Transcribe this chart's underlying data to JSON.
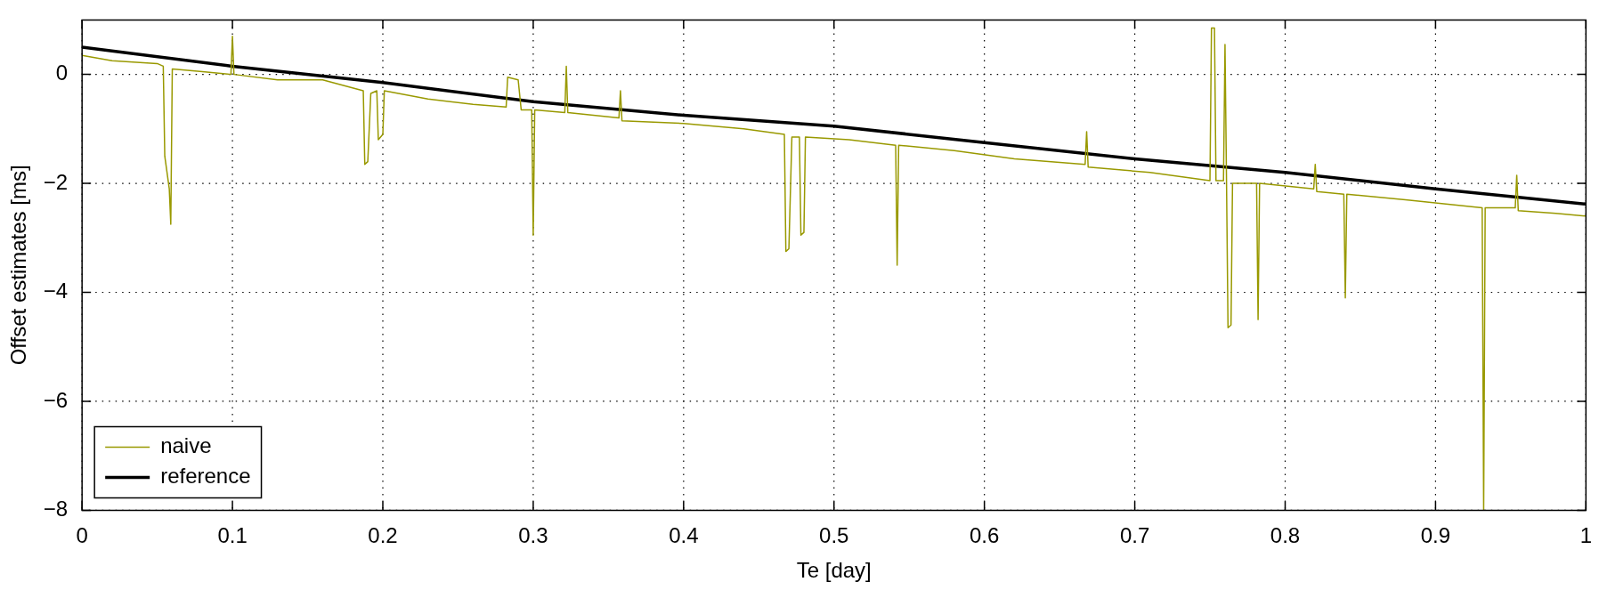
{
  "chart_data": {
    "type": "line",
    "xlabel": "Te [day]",
    "ylabel": "Offset estimates [ms]",
    "xlim": [
      0,
      1
    ],
    "ylim": [
      -8,
      1
    ],
    "xticks": [
      0,
      0.1,
      0.2,
      0.3,
      0.4,
      0.5,
      0.6,
      0.7,
      0.8,
      0.9,
      1
    ],
    "yticks": [
      {
        "value": -8,
        "label": "−8"
      },
      {
        "value": -6,
        "label": "−6"
      },
      {
        "value": -4,
        "label": "−4"
      },
      {
        "value": -2,
        "label": "−2"
      },
      0
    ],
    "grid": true,
    "legend": "bottom left",
    "marker": "none",
    "line_style": "solid",
    "series": [
      {
        "name": "naive",
        "color": "#999900",
        "x": [
          0,
          0.02,
          0.05,
          0.054,
          0.055,
          0.058,
          0.059,
          0.06,
          0.08,
          0.099,
          0.1,
          0.101,
          0.13,
          0.16,
          0.187,
          0.188,
          0.19,
          0.192,
          0.196,
          0.197,
          0.2,
          0.201,
          0.23,
          0.26,
          0.282,
          0.283,
          0.29,
          0.292,
          0.299,
          0.3,
          0.301,
          0.321,
          0.322,
          0.323,
          0.357,
          0.358,
          0.359,
          0.4,
          0.44,
          0.467,
          0.468,
          0.47,
          0.472,
          0.477,
          0.478,
          0.48,
          0.481,
          0.51,
          0.541,
          0.542,
          0.543,
          0.58,
          0.62,
          0.667,
          0.668,
          0.669,
          0.71,
          0.75,
          0.751,
          0.753,
          0.754,
          0.759,
          0.76,
          0.761,
          0.762,
          0.764,
          0.765,
          0.781,
          0.782,
          0.783,
          0.819,
          0.82,
          0.821,
          0.839,
          0.84,
          0.841,
          0.88,
          0.931,
          0.932,
          0.933,
          0.953,
          0.954,
          0.955,
          0.98,
          1
        ],
        "values": [
          0.35,
          0.25,
          0.2,
          0.15,
          -1.5,
          -2.1,
          -2.75,
          0.1,
          0.05,
          0,
          0.7,
          0,
          -0.1,
          -0.1,
          -0.3,
          -1.65,
          -1.6,
          -0.35,
          -0.3,
          -1.2,
          -1.1,
          -0.3,
          -0.45,
          -0.55,
          -0.6,
          -0.05,
          -0.1,
          -0.65,
          -0.65,
          -2.95,
          -0.65,
          -0.7,
          0.15,
          -0.7,
          -0.8,
          -0.3,
          -0.85,
          -0.9,
          -1,
          -1.1,
          -3.25,
          -3.2,
          -1.15,
          -1.15,
          -2.95,
          -2.9,
          -1.15,
          -1.2,
          -1.3,
          -3.5,
          -1.3,
          -1.4,
          -1.55,
          -1.65,
          -1.05,
          -1.7,
          -1.8,
          -1.95,
          0.85,
          0.85,
          -1.95,
          -1.95,
          0.55,
          -1.95,
          -4.65,
          -4.6,
          -2,
          -2,
          -4.5,
          -2,
          -2.1,
          -1.65,
          -2.15,
          -2.2,
          -4.1,
          -2.2,
          -2.3,
          -2.45,
          -8,
          -2.45,
          -2.45,
          -1.85,
          -2.5,
          -2.55,
          -2.6
        ]
      },
      {
        "name": "reference",
        "color": "#000000",
        "x": [
          0,
          0.1,
          0.2,
          0.3,
          0.4,
          0.5,
          0.6,
          0.7,
          0.8,
          0.9,
          1
        ],
        "values": [
          0.5,
          0.15,
          -0.15,
          -0.5,
          -0.75,
          -0.95,
          -1.25,
          -1.55,
          -1.8,
          -2.1,
          -2.38
        ]
      }
    ]
  }
}
